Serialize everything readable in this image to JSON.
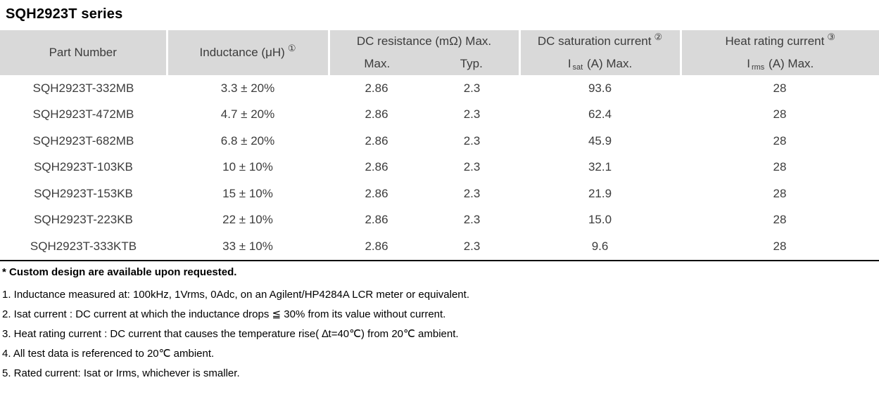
{
  "page": {
    "title": "SQH2923T series"
  },
  "colors": {
    "header_bg": "#d9d9d9",
    "table_text": "#3c3c3c",
    "divider": "#000000"
  },
  "table": {
    "header": {
      "part_number": "Part Number",
      "inductance": "Inductance (μH)",
      "inductance_note_ref": "①",
      "dc_resistance": "DC resistance (mΩ) Max.",
      "dc_resistance_sub_max": "Max.",
      "dc_resistance_sub_typ": "Typ.",
      "dc_saturation": "DC saturation current",
      "dc_saturation_note_ref": "②",
      "isat_prefix": "I",
      "isat_sub": "sat",
      "isat_suffix": "(A)  Max.",
      "heat_rating": "Heat rating current",
      "heat_rating_note_ref": "③",
      "irms_prefix": "I",
      "irms_sub": "rms",
      "irms_suffix": "(A)  Max."
    },
    "rows": [
      {
        "part_number": "SQH2923T-332MB",
        "inductance": "3.3 ± 20%",
        "dcr_max": "2.86",
        "dcr_typ": "2.3",
        "isat": "93.6",
        "irms": "28"
      },
      {
        "part_number": "SQH2923T-472MB",
        "inductance": "4.7 ± 20%",
        "dcr_max": "2.86",
        "dcr_typ": "2.3",
        "isat": "62.4",
        "irms": "28"
      },
      {
        "part_number": "SQH2923T-682MB",
        "inductance": "6.8 ± 20%",
        "dcr_max": "2.86",
        "dcr_typ": "2.3",
        "isat": "45.9",
        "irms": "28"
      },
      {
        "part_number": "SQH2923T-103KB",
        "inductance": "10 ± 10%",
        "dcr_max": "2.86",
        "dcr_typ": "2.3",
        "isat": "32.1",
        "irms": "28"
      },
      {
        "part_number": "SQH2923T-153KB",
        "inductance": "15 ± 10%",
        "dcr_max": "2.86",
        "dcr_typ": "2.3",
        "isat": "21.9",
        "irms": "28"
      },
      {
        "part_number": "SQH2923T-223KB",
        "inductance": "22 ± 10%",
        "dcr_max": "2.86",
        "dcr_typ": "2.3",
        "isat": "15.0",
        "irms": "28"
      },
      {
        "part_number": "SQH2923T-333KTB",
        "inductance": "33 ± 10%",
        "dcr_max": "2.86",
        "dcr_typ": "2.3",
        "isat": "9.6",
        "irms": "28"
      }
    ]
  },
  "notes": {
    "custom": "* Custom design are available upon requested.",
    "items": [
      "1. Inductance measured at: 100kHz, 1Vrms, 0Adc, on an Agilent/HP4284A LCR meter or equivalent.",
      "2. Isat current : DC current at which the inductance drops ≦ 30% from its value without current.",
      "3. Heat rating current : DC current that causes the temperature rise( ∆t=40℃) from 20℃ ambient.",
      "4. All test data is referenced to 20℃ ambient.",
      "5. Rated current: Isat or Irms, whichever is smaller."
    ]
  }
}
